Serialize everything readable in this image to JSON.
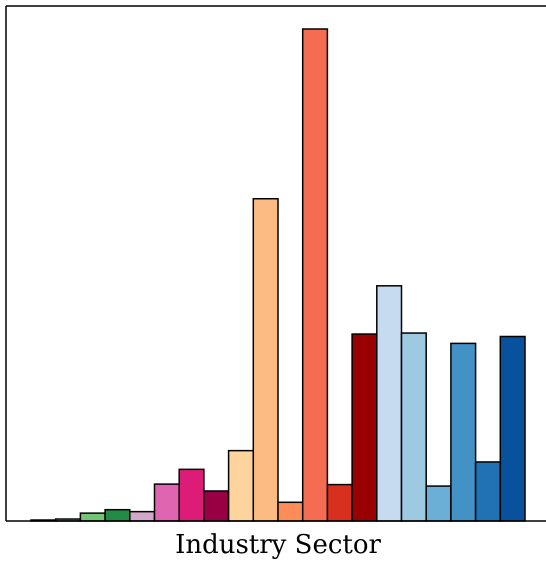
{
  "chart_data": {
    "type": "bar",
    "xlabel": "Industry Sector",
    "ylabel": "",
    "title": "",
    "grid": false,
    "ylim": [
      0,
      100
    ],
    "values": [
      0.2,
      0.4,
      1.6,
      2.3,
      1.9,
      7.5,
      10.5,
      6.1,
      14.3,
      65.5,
      3.8,
      100,
      7.4,
      38.0,
      47.8,
      38.2,
      7.1,
      36.1,
      12.0,
      37.5
    ],
    "colors": [
      "#d9d9d9",
      "#a1d99b",
      "#74c476",
      "#238b45",
      "#d4a6c8",
      "#df65b0",
      "#dd1c77",
      "#980043",
      "#fdd49e",
      "#fdbb84",
      "#fc8d59",
      "#f46d53",
      "#d7301f",
      "#990000",
      "#c6dbef",
      "#9ecae1",
      "#6baed6",
      "#4292c6",
      "#2171b5",
      "#08519c"
    ]
  }
}
